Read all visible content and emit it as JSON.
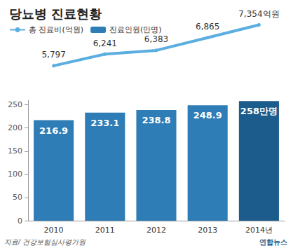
{
  "chart_data": {
    "type": "bar",
    "title": "당뇨병 진료현황",
    "categories": [
      "2010",
      "2011",
      "2012",
      "2013",
      "2014년"
    ],
    "series": [
      {
        "name": "총 진료비(억원)",
        "type": "line",
        "axis": "y2",
        "color": "#5aaee0",
        "values": [
          5797,
          6241,
          6383,
          6865,
          7354
        ],
        "value_labels": [
          "5,797",
          "6,241",
          "6,383",
          "6,865",
          "7,354억원"
        ]
      },
      {
        "name": "진료인원(만명)",
        "type": "bar",
        "color": "#2f7db6",
        "colors": [
          "#2f7db6",
          "#2f7db6",
          "#2f7db6",
          "#2f7db6",
          "#1c5c8c"
        ],
        "values": [
          216.9,
          233.1,
          238.8,
          248.9,
          258
        ],
        "value_labels": [
          "216.9",
          "233.1",
          "238.8",
          "248.9",
          "258만명"
        ]
      }
    ],
    "ylim": [
      0,
      260
    ],
    "yticks": [
      0,
      50,
      100,
      150,
      200,
      250
    ],
    "y2lim": [
      5500,
      7500
    ],
    "y2ticks": [],
    "data_labels": true,
    "grid": false,
    "legend": "top-left",
    "source": "자료/ 건강보험심사평가원",
    "credit": "연합뉴스"
  }
}
